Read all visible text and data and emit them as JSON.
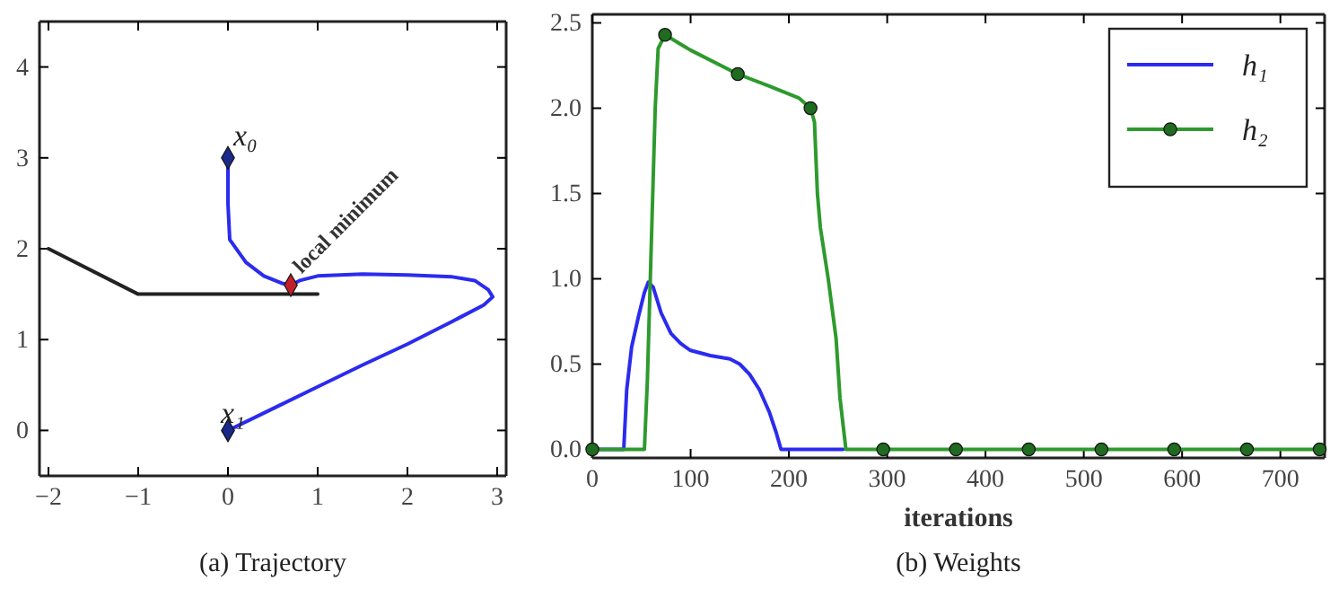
{
  "chart_data": [
    {
      "type": "line",
      "title": "(a) Trajectory",
      "xlim": [
        -2.1,
        3.1
      ],
      "ylim": [
        -0.5,
        4.5
      ],
      "xticks": [
        -2,
        -1,
        0,
        1,
        2,
        3
      ],
      "yticks": [
        0,
        1,
        2,
        3,
        4
      ],
      "grid": false,
      "legend": false,
      "series": [
        {
          "color": "#222222",
          "x": [
            -2,
            -1,
            1
          ],
          "values": [
            2,
            1.5,
            1.5
          ]
        },
        {
          "color": "#2b2bef",
          "x": [
            0,
            0,
            0.02,
            0.2,
            0.4,
            0.6,
            0.7,
            0.8,
            1.0,
            1.5,
            2.0,
            2.5,
            2.75,
            2.9,
            2.95,
            2.85,
            2.5,
            2.0,
            1.5,
            1.0,
            0.5,
            0
          ],
          "values": [
            3,
            2.5,
            2.1,
            1.85,
            1.7,
            1.62,
            1.6,
            1.65,
            1.7,
            1.72,
            1.71,
            1.69,
            1.65,
            1.55,
            1.47,
            1.38,
            1.2,
            0.95,
            0.72,
            0.48,
            0.24,
            0
          ]
        },
        {
          "type": "scatter",
          "marker": "diamond",
          "x": [
            0,
            0,
            0.7
          ],
          "values": [
            3,
            0,
            1.6
          ],
          "colors": [
            "#1a2a8a",
            "#1a2a8a",
            "#c0202a"
          ]
        }
      ],
      "annotations": [
        "x₀",
        "x₁",
        "local minimum"
      ]
    },
    {
      "type": "line",
      "title": "(b) Weights",
      "xlabel": "iterations",
      "xlim": [
        0,
        745
      ],
      "ylim": [
        -0.05,
        2.55
      ],
      "xticks": [
        0,
        100,
        200,
        300,
        400,
        500,
        600,
        700
      ],
      "yticks": [
        {
          "value": 0,
          "label": "0.0"
        },
        {
          "value": 0.5,
          "label": "0.5"
        },
        {
          "value": 1,
          "label": "1.0"
        },
        {
          "value": 1.5,
          "label": "1.5"
        },
        {
          "value": 2,
          "label": "2.0"
        },
        {
          "value": 2.5,
          "label": "2.5"
        }
      ],
      "grid": false,
      "legend": "top right",
      "series": [
        {
          "name": "h₁",
          "color": "#2b2bef",
          "x": [
            0,
            32,
            35,
            40,
            47,
            53,
            57,
            62,
            70,
            80,
            90,
            100,
            120,
            140,
            150,
            160,
            170,
            180,
            187,
            192,
            255
          ],
          "values": [
            0,
            0,
            0.35,
            0.6,
            0.78,
            0.92,
            0.98,
            0.95,
            0.8,
            0.68,
            0.62,
            0.58,
            0.55,
            0.53,
            0.5,
            0.44,
            0.35,
            0.22,
            0.1,
            0,
            0
          ]
        },
        {
          "name": "h₂",
          "color": "#2e9a2e",
          "x": [
            0,
            53,
            56,
            60,
            64,
            67,
            74,
            100,
            148,
            180,
            210,
            222,
            226,
            229,
            232,
            240,
            248,
            252,
            258,
            740
          ],
          "values": [
            0,
            0,
            0.4,
            1.2,
            2.0,
            2.35,
            2.43,
            2.34,
            2.2,
            2.13,
            2.06,
            2.0,
            1.92,
            1.5,
            1.3,
            1.0,
            0.65,
            0.3,
            0,
            0
          ]
        },
        {
          "type": "scatter",
          "marker": "circle",
          "color": "#1f6b1f",
          "x": [
            0,
            74,
            148,
            222,
            296,
            370,
            444,
            518,
            592,
            666,
            740
          ],
          "values": [
            0,
            2.43,
            2.2,
            2.0,
            0,
            0,
            0,
            0,
            0,
            0,
            0
          ]
        }
      ]
    }
  ]
}
